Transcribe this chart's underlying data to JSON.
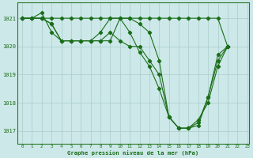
{
  "xlabel": "Graphe pression niveau de la mer (hPa)",
  "background_color": "#cde8e8",
  "grid_color": "#aacccc",
  "line_color": "#1a6e1a",
  "xlim": [
    -0.5,
    23.2
  ],
  "ylim": [
    1016.55,
    1021.55
  ],
  "yticks": [
    1017,
    1018,
    1019,
    1020,
    1021
  ],
  "xticks": [
    0,
    1,
    2,
    3,
    4,
    5,
    6,
    7,
    8,
    9,
    10,
    11,
    12,
    13,
    14,
    15,
    16,
    17,
    18,
    19,
    20,
    21,
    22,
    23
  ],
  "lines": [
    {
      "x": [
        0,
        1,
        2,
        3,
        4,
        5,
        6,
        7,
        8,
        9,
        10,
        11,
        12,
        13,
        14,
        15,
        16,
        17,
        18,
        19,
        20,
        21
      ],
      "y": [
        1021.0,
        1021.0,
        1021.0,
        1021.0,
        1021.0,
        1021.0,
        1021.0,
        1021.0,
        1021.0,
        1021.0,
        1021.0,
        1021.0,
        1021.0,
        1021.0,
        1021.0,
        1021.0,
        1021.0,
        1021.0,
        1021.0,
        1021.0,
        1021.0,
        1020.0
      ]
    },
    {
      "x": [
        0,
        1,
        2,
        3,
        4,
        5,
        6,
        7,
        8,
        9,
        10,
        11,
        12,
        13,
        14,
        15,
        16,
        17,
        18,
        19,
        20,
        21
      ],
      "y": [
        1021.0,
        1021.0,
        1021.2,
        1020.5,
        1020.2,
        1020.2,
        1020.2,
        1020.2,
        1020.2,
        1020.2,
        1021.0,
        1021.0,
        1020.8,
        1020.5,
        1019.5,
        1017.5,
        1017.1,
        1017.1,
        1017.2,
        1018.2,
        1019.7,
        1020.0
      ]
    },
    {
      "x": [
        0,
        1,
        2,
        3,
        4,
        5,
        6,
        7,
        8,
        9,
        10,
        11,
        12,
        13,
        14,
        15,
        16,
        17,
        18,
        19,
        20,
        21
      ],
      "y": [
        1021.0,
        1021.0,
        1021.0,
        1020.8,
        1020.2,
        1020.2,
        1020.2,
        1020.2,
        1020.2,
        1020.5,
        1020.2,
        1020.0,
        1020.0,
        1019.5,
        1019.0,
        1017.5,
        1017.1,
        1017.1,
        1017.3,
        1018.2,
        1019.5,
        1020.0
      ]
    },
    {
      "x": [
        0,
        1,
        2,
        3,
        4,
        5,
        6,
        7,
        8,
        9,
        10,
        11,
        12,
        13,
        14,
        15,
        16,
        17,
        18,
        19,
        20,
        21
      ],
      "y": [
        1021.0,
        1021.0,
        1021.0,
        1020.8,
        1020.2,
        1020.2,
        1020.2,
        1020.2,
        1020.5,
        1021.0,
        1021.0,
        1020.5,
        1019.8,
        1019.3,
        1018.5,
        1017.5,
        1017.1,
        1017.1,
        1017.4,
        1018.0,
        1019.3,
        1020.0
      ]
    }
  ]
}
